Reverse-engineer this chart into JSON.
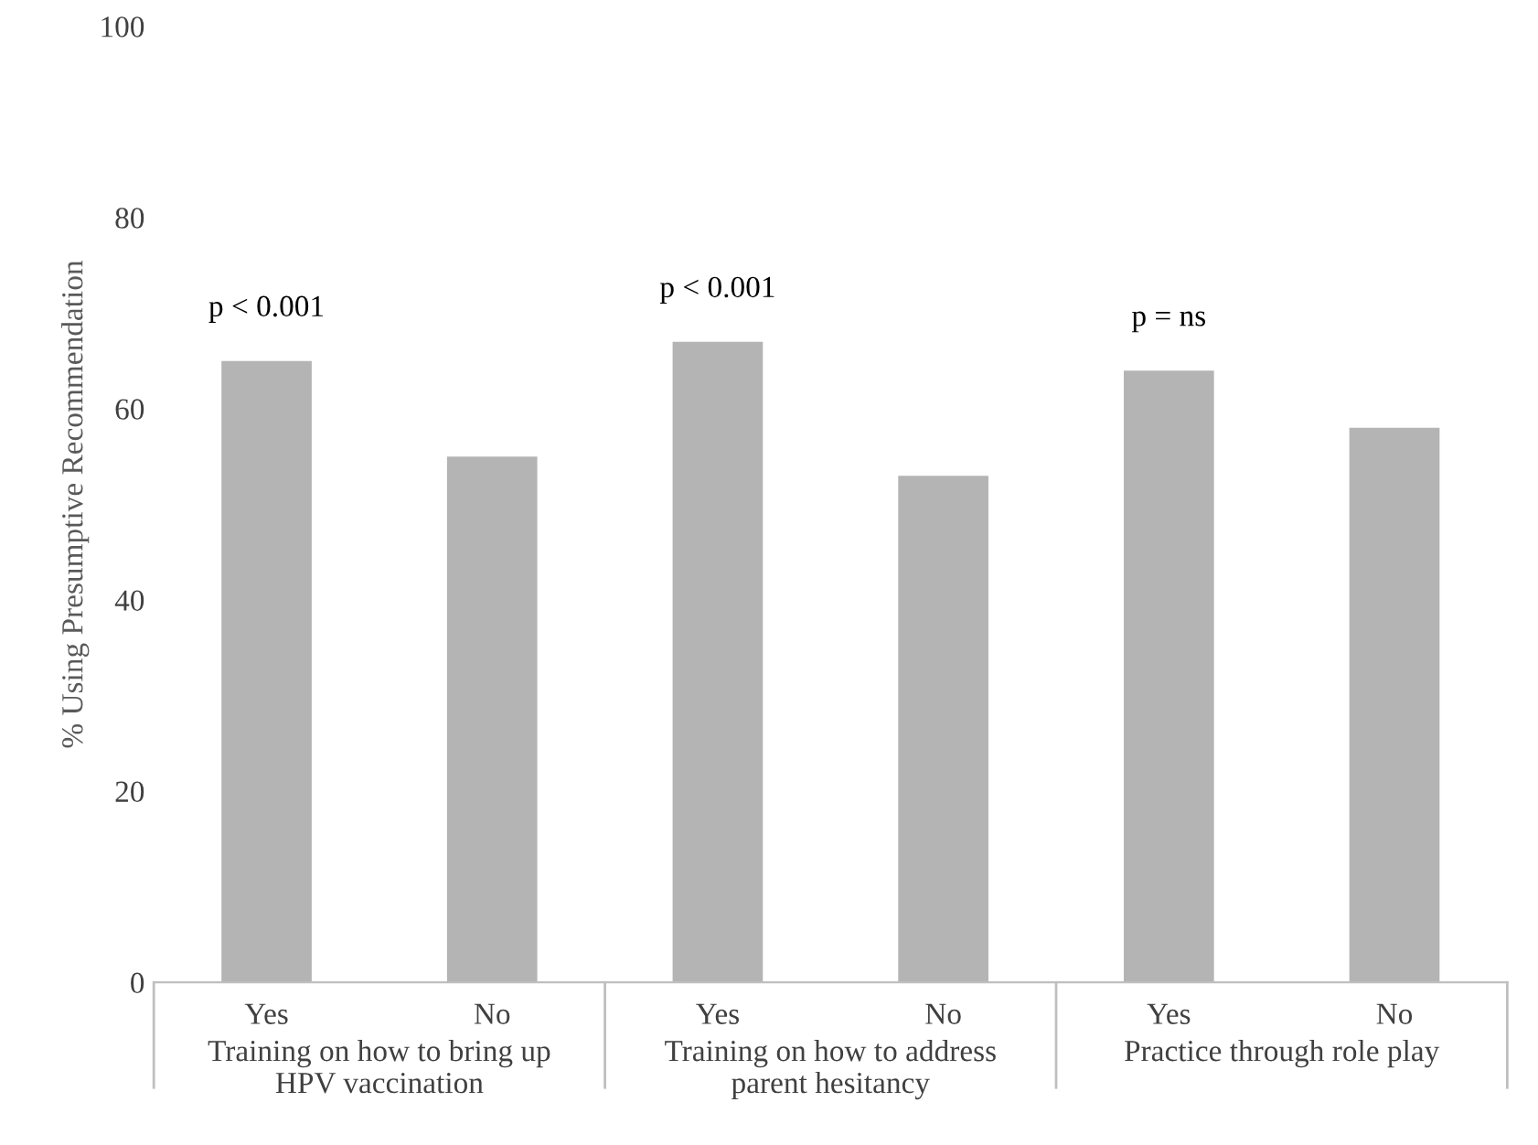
{
  "chart_data": {
    "type": "bar",
    "ylabel": "% Using Presumptive Recommendation",
    "categories": [
      "Yes",
      "No",
      "Yes",
      "No",
      "Yes",
      "No"
    ],
    "values": [
      65,
      55,
      67,
      53,
      64,
      58
    ],
    "color": "#b4b4b4",
    "ylim": [
      0,
      100
    ],
    "yticks": [
      0,
      20,
      40,
      60,
      80,
      100
    ],
    "grid": false,
    "annotations": [
      "p < 0.001",
      "p < 0.001",
      "p = ns",
      "Training on how to bring up\nHPV vaccination",
      "Training on how to address\nparent hesitancy",
      "Practice through role play"
    ]
  }
}
